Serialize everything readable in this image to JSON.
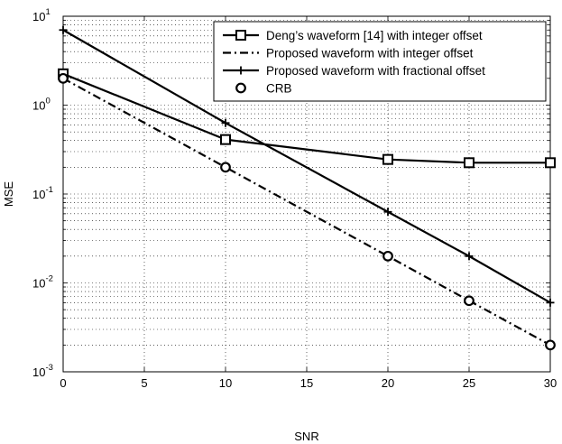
{
  "chart_data": {
    "type": "line",
    "xlabel": "SNR",
    "ylabel": "MSE",
    "yscale": "log",
    "xlim": [
      0,
      30
    ],
    "ylim": [
      0.001,
      10
    ],
    "grid": true,
    "legend_position": "top-right",
    "x_ticks": [
      "0",
      "5",
      "10",
      "15",
      "20",
      "25",
      "30"
    ],
    "y_ticks": [
      {
        "base": "10",
        "exp": "-3",
        "value": 0.001
      },
      {
        "base": "10",
        "exp": "-2",
        "value": 0.01
      },
      {
        "base": "10",
        "exp": "-1",
        "value": 0.1
      },
      {
        "base": "10",
        "exp": "0",
        "value": 1
      },
      {
        "base": "10",
        "exp": "1",
        "value": 10
      }
    ],
    "series": [
      {
        "name": "Deng’s waveform [14] with integer offset",
        "line": "solid",
        "marker": "square",
        "x": [
          0,
          10,
          20,
          25,
          30
        ],
        "y": [
          2.25,
          0.41,
          0.245,
          0.225,
          0.225
        ]
      },
      {
        "name": "Proposed waveform with integer offset",
        "line": "dashdot",
        "marker": "none",
        "x": [
          0,
          10,
          20,
          25,
          30
        ],
        "y": [
          2.0,
          0.2,
          0.02,
          0.0063,
          0.002
        ]
      },
      {
        "name": "Proposed waveform with fractional offset",
        "line": "solid",
        "marker": "plus",
        "x": [
          0,
          10,
          20,
          25,
          30
        ],
        "y": [
          7.0,
          0.63,
          0.063,
          0.02,
          0.006
        ]
      },
      {
        "name": "CRB",
        "line": "none",
        "marker": "circle",
        "x": [
          0,
          10,
          20,
          25,
          30
        ],
        "y": [
          2.0,
          0.2,
          0.02,
          0.0063,
          0.002
        ]
      }
    ]
  }
}
